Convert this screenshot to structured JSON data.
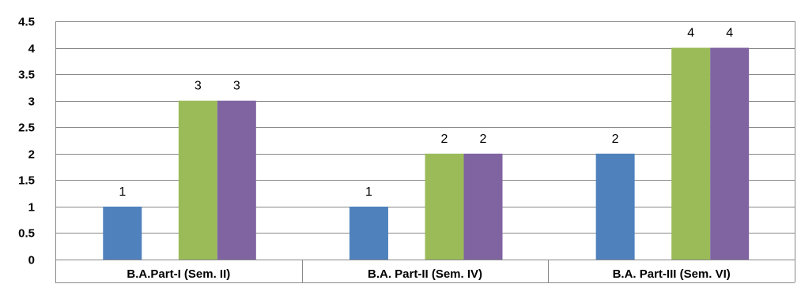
{
  "chart_data": {
    "type": "bar",
    "title": "",
    "xlabel": "",
    "ylabel": "",
    "categories": [
      "B.A.Part-I (Sem. II)",
      "B.A. Part-II (Sem. IV)",
      "B.A. Part-III (Sem. VI)"
    ],
    "series": [
      {
        "values": [
          1,
          1,
          2
        ],
        "color": "#4F81BD"
      },
      {
        "values": [
          3,
          2,
          4
        ],
        "color": "#9BBB59"
      },
      {
        "values": [
          3,
          2,
          4
        ],
        "color": "#8064A2"
      }
    ],
    "ylim": [
      0,
      4.5
    ],
    "yticks": [
      "0",
      "0.5",
      "1",
      "1.5",
      "2",
      "2.5",
      "3",
      "3.5",
      "4",
      "4.5"
    ],
    "grid": true,
    "legend": "none",
    "data_labels": true
  }
}
